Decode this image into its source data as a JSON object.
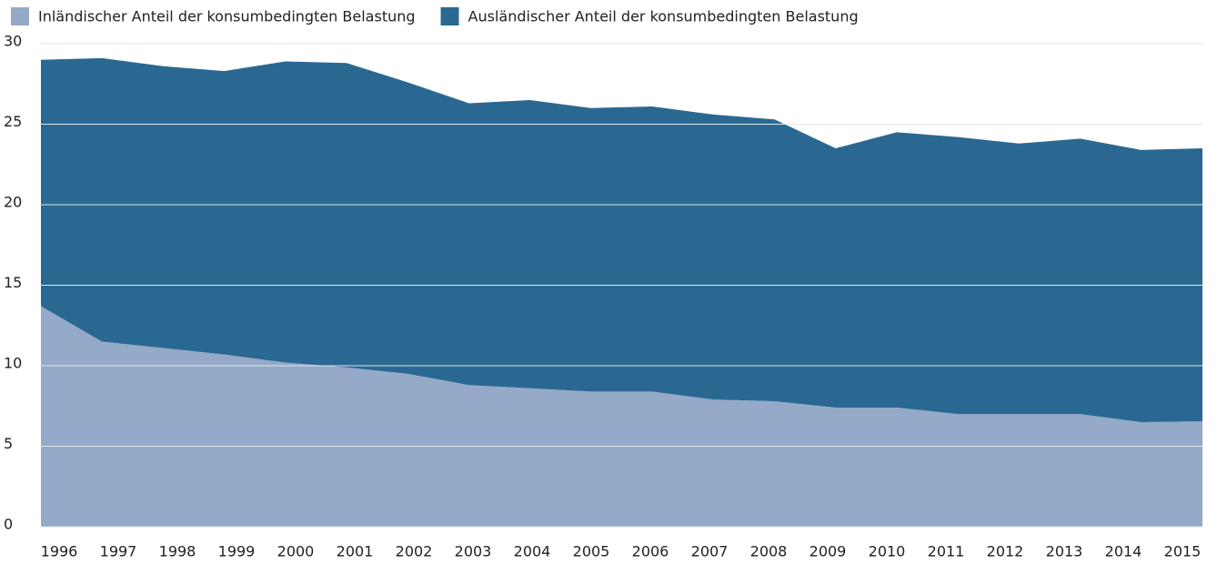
{
  "chart_data": {
    "type": "stacked-area",
    "categories": [
      "1996",
      "1997",
      "1998",
      "1999",
      "2000",
      "2001",
      "2002",
      "2003",
      "2004",
      "2005",
      "2006",
      "2007",
      "2008",
      "2009",
      "2010",
      "2011",
      "2012",
      "2013",
      "2014",
      "2015"
    ],
    "series": [
      {
        "name": "Inländischer Anteil der konsumbedingten Belastung",
        "color": "#95a9c8",
        "values": [
          13.7,
          11.5,
          11.1,
          10.7,
          10.2,
          9.9,
          9.5,
          8.8,
          8.6,
          8.4,
          8.4,
          7.9,
          7.8,
          7.4,
          7.4,
          7.0,
          7.0,
          7.0,
          6.5,
          6.55
        ]
      },
      {
        "name": "Ausländischer Anteil der konsumbedingten Belastung",
        "color": "#2a6892",
        "values": [
          15.3,
          17.6,
          17.5,
          17.6,
          18.7,
          18.9,
          18.1,
          17.5,
          17.9,
          17.6,
          17.7,
          17.7,
          17.5,
          16.1,
          17.1,
          17.2,
          16.8,
          17.1,
          16.9,
          16.95
        ]
      }
    ],
    "ylim": [
      0,
      30
    ],
    "yticks": [
      0,
      5,
      10,
      15,
      20,
      25,
      30
    ],
    "grid": true,
    "legend": "top-left"
  }
}
